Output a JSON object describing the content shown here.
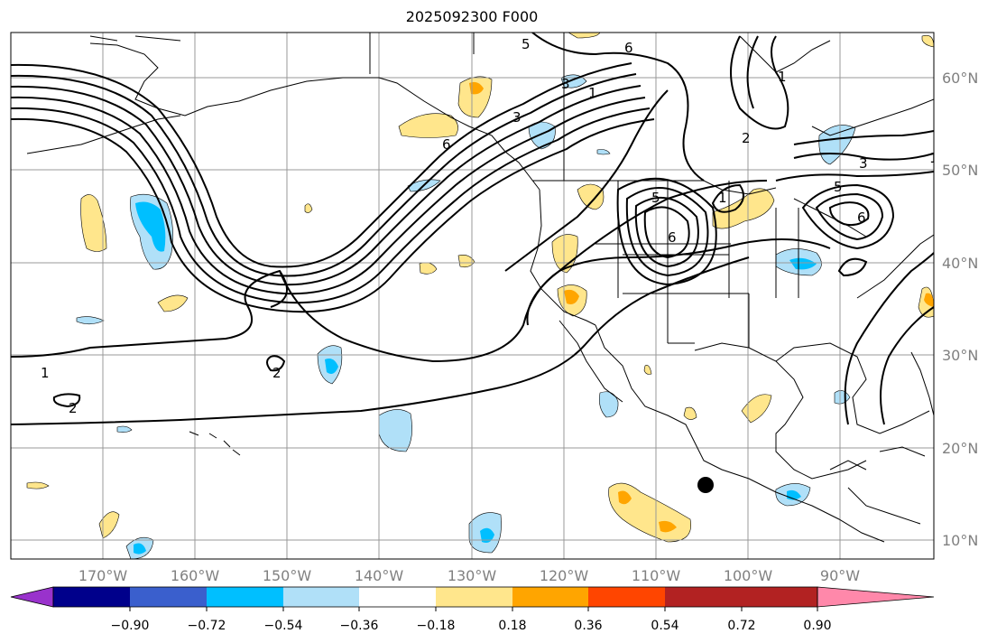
{
  "title": "2025092300 F000",
  "lon_labels": [
    "170°W",
    "160°W",
    "150°W",
    "140°W",
    "130°W",
    "120°W",
    "110°W",
    "100°W",
    "90°W"
  ],
  "lat_labels": [
    "60°N",
    "50°N",
    "40°N",
    "30°N",
    "20°N",
    "10°N"
  ],
  "contour_labels": [
    "5",
    "6",
    "1",
    "3",
    "6",
    "5",
    "6",
    "1",
    "1",
    "2",
    "3",
    "5",
    "6",
    "3",
    "1",
    "2",
    "1",
    "2"
  ],
  "colorbar": {
    "colors": [
      "#9932cc",
      "#00008b",
      "#3a5fcd",
      "#00bfff",
      "#b0e0f8",
      "#ffffff",
      "#ffe68c",
      "#ffa500",
      "#ff4500",
      "#b22222",
      "#ff88aa"
    ],
    "ticks": [
      "−0.90",
      "−0.72",
      "−0.54",
      "−0.36",
      "−0.18",
      "0.18",
      "0.36",
      "0.54",
      "0.72",
      "0.90"
    ]
  },
  "marker_color": "#000000"
}
